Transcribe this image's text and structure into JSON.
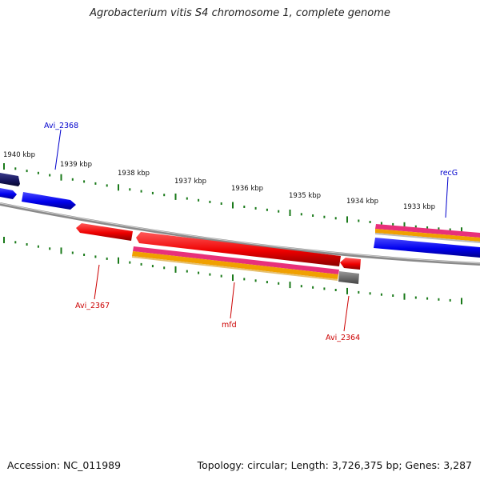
{
  "title": "Agrobacterium vitis S4 chromosome 1, complete genome",
  "footer": {
    "accession": "Accession: NC_011989",
    "summary": "Topology: circular; Length: 3,726,375 bp; Genes: 3,287"
  },
  "scale_labels": [
    "1940 kbp",
    "1939 kbp",
    "1938 kbp",
    "1937 kbp",
    "1936 kbp",
    "1935 kbp",
    "1934 kbp",
    "1933 kbp"
  ],
  "gene_labels": {
    "avi_2368": "Avi_2368",
    "recg": "recG",
    "avi_2367": "Avi_2367",
    "mfd": "mfd",
    "avi_2364": "Avi_2364"
  },
  "colors": {
    "forward_cds": "#0000ee",
    "reverse_cds": "#ee0000",
    "dark_cds": "#14145a",
    "backbone": "#8a8a8a",
    "tick": "#1a7a1a",
    "label_forward": "#0000cc",
    "label_reverse": "#cc0000",
    "band_pink": "#e8307a",
    "band_orange": "#f0a000",
    "band_gray": "#666666"
  }
}
